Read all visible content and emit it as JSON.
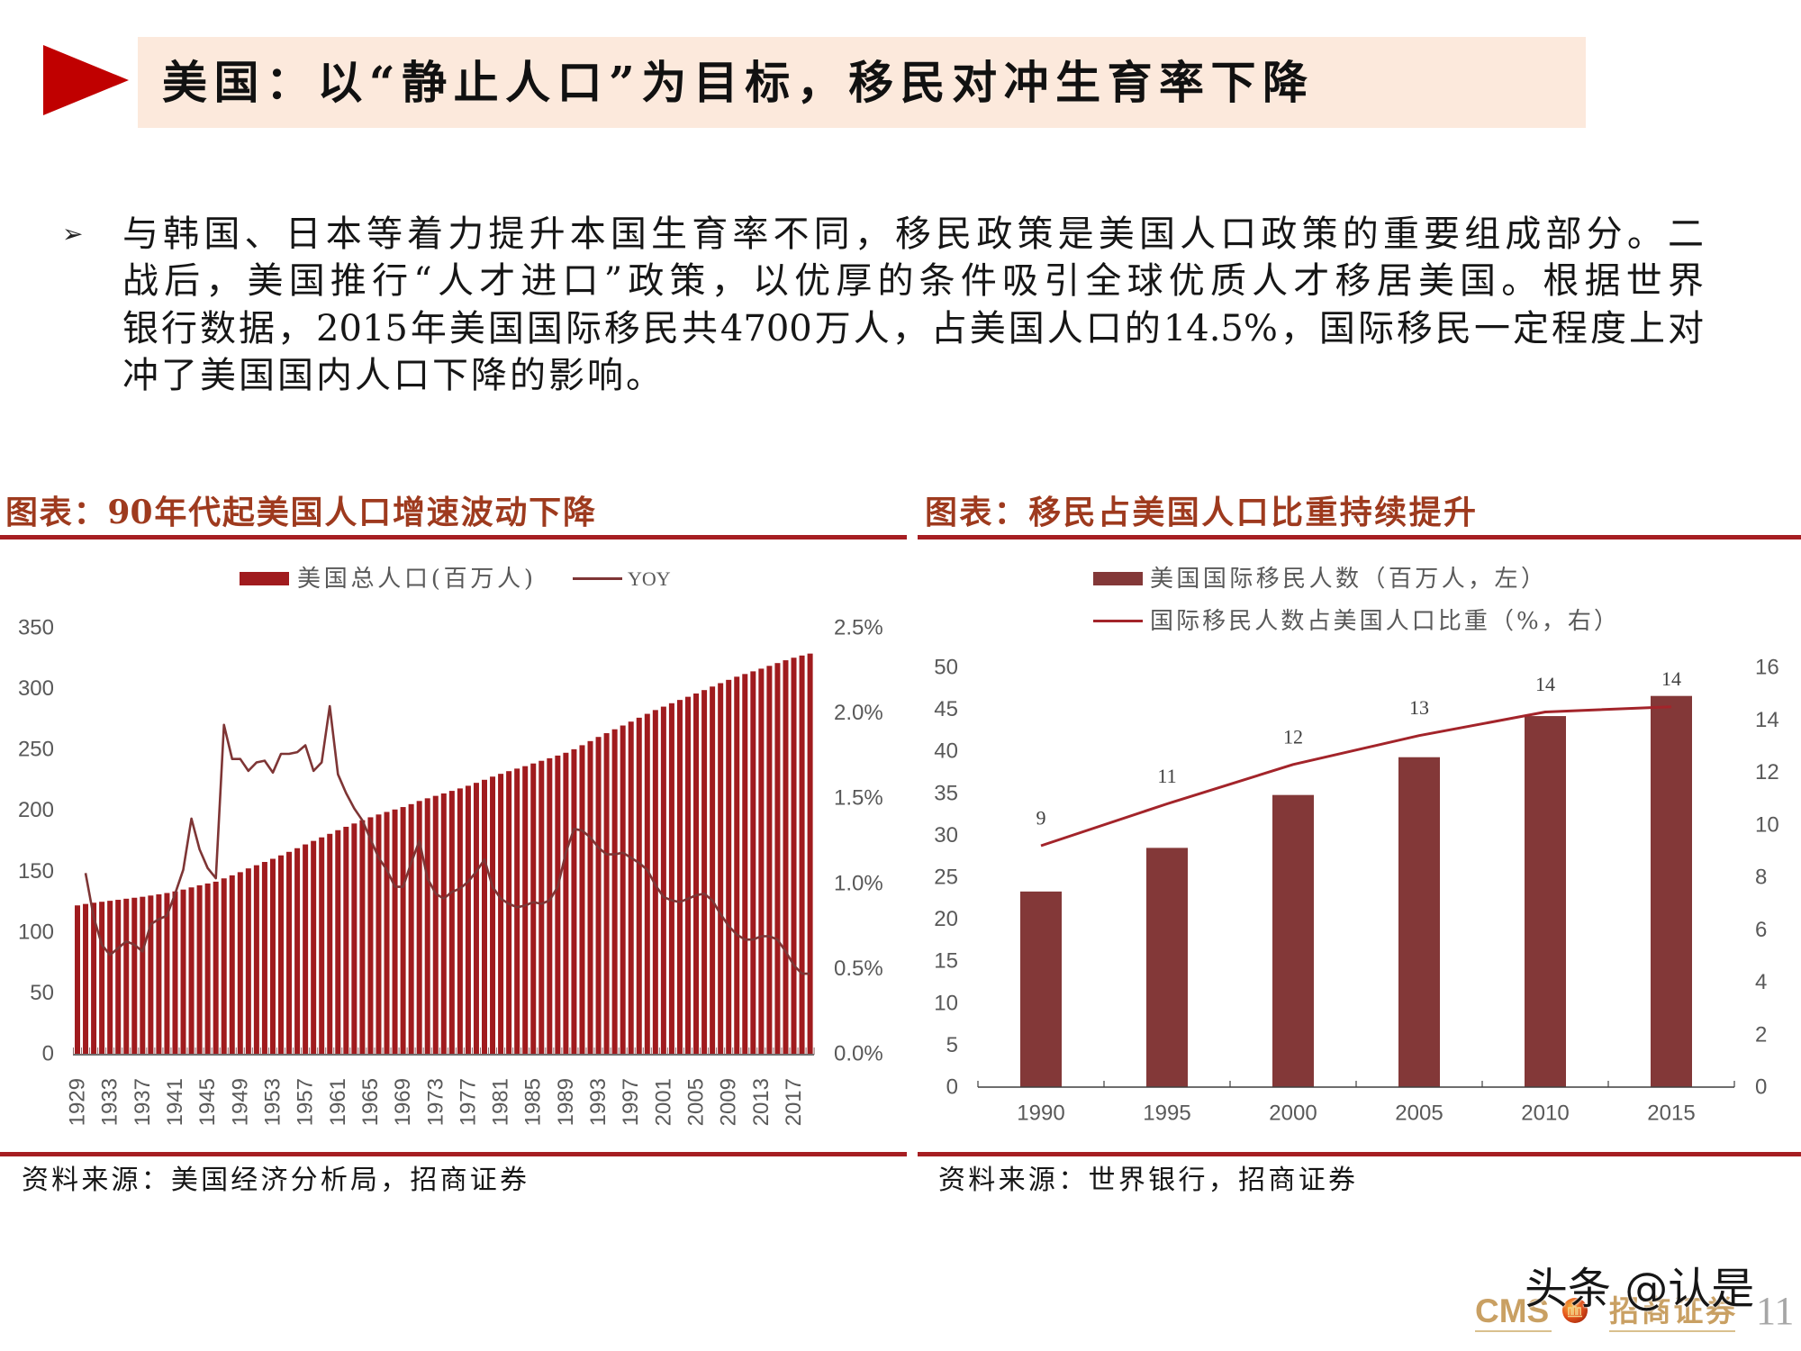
{
  "theme": {
    "accent_red": "#C00000",
    "title_banner_bg": "#FCE9DC",
    "chart_title_color": "#9E3A1E",
    "divider_red": "#A61E22",
    "axis_text": "#595959",
    "logo_gold": "#C9A063",
    "page_number_gray": "#A6A6A6"
  },
  "slide": {
    "title": "美国：以“静止人口”为目标，移民对冲生育率下降",
    "title_icon": "red-triangle-arrow-icon",
    "page_number": "11",
    "watermark": "头条 @认是",
    "logo": {
      "en": "CMS",
      "cn": "招商证券",
      "icon": "cms-ball-logo-icon"
    }
  },
  "body": {
    "bullet_icon": "arrow-bullet-icon",
    "bullet_glyph": "➢",
    "lines": [
      "与韩国、日本等着力提升本国生育率不同，移民政策是美国人口政策的重要组成部分。二",
      "战后，美国推行“人才进口”政策，以优厚的条件吸引全球优质人才移居美国。根据世界",
      "银行数据，2015年美国国际移民共4700万人，占美国人口的14.5%，国际移民一定程度上对",
      "冲了美国国内人口下降的影响。"
    ]
  },
  "panels": {
    "left": {
      "source": "资料来源：美国经济分析局，招商证券"
    },
    "right": {
      "source": "资料来源：世界银行，招商证券"
    }
  },
  "chart_data": [
    {
      "type": "bar",
      "title": "图表：90年代起美国人口增速波动下降",
      "xlabel": "",
      "ylabel": "",
      "grid": false,
      "legend_position": "top",
      "categories": [
        "1929",
        "1930",
        "1931",
        "1932",
        "1933",
        "1934",
        "1935",
        "1936",
        "1937",
        "1938",
        "1939",
        "1940",
        "1941",
        "1942",
        "1943",
        "1944",
        "1945",
        "1946",
        "1947",
        "1948",
        "1949",
        "1950",
        "1951",
        "1952",
        "1953",
        "1954",
        "1955",
        "1956",
        "1957",
        "1958",
        "1959",
        "1960",
        "1961",
        "1962",
        "1963",
        "1964",
        "1965",
        "1966",
        "1967",
        "1968",
        "1969",
        "1970",
        "1971",
        "1972",
        "1973",
        "1974",
        "1975",
        "1976",
        "1977",
        "1978",
        "1979",
        "1980",
        "1981",
        "1982",
        "1983",
        "1984",
        "1985",
        "1986",
        "1987",
        "1988",
        "1989",
        "1990",
        "1991",
        "1992",
        "1993",
        "1994",
        "1995",
        "1996",
        "1997",
        "1998",
        "1999",
        "2000",
        "2001",
        "2002",
        "2003",
        "2004",
        "2005",
        "2006",
        "2007",
        "2008",
        "2009",
        "2010",
        "2011",
        "2012",
        "2013",
        "2014",
        "2015",
        "2016",
        "2017",
        "2018",
        "2019"
      ],
      "x_tick_labels": [
        "1929",
        "1933",
        "1937",
        "1941",
        "1945",
        "1949",
        "1953",
        "1957",
        "1961",
        "1965",
        "1969",
        "1973",
        "1977",
        "1981",
        "1985",
        "1989",
        "1993",
        "1997",
        "2001",
        "2005",
        "2009",
        "2013",
        "2017"
      ],
      "series": [
        {
          "name": "美国总人口(百万人)",
          "type": "bar",
          "axis": "left",
          "color": "#A01B1E",
          "values": [
            121.9,
            123.1,
            124.1,
            124.9,
            125.7,
            126.5,
            127.4,
            128.2,
            129.0,
            130.0,
            131.0,
            132.1,
            133.4,
            134.9,
            136.7,
            138.4,
            139.9,
            141.4,
            144.1,
            146.6,
            149.2,
            152.3,
            154.9,
            157.6,
            160.2,
            163.0,
            165.9,
            168.9,
            172.0,
            174.9,
            177.8,
            180.7,
            183.7,
            186.5,
            189.2,
            191.9,
            194.3,
            196.6,
            198.7,
            200.7,
            202.7,
            205.1,
            207.7,
            209.9,
            211.9,
            213.9,
            216.0,
            218.0,
            220.2,
            222.6,
            225.1,
            227.7,
            230.0,
            232.2,
            234.3,
            236.3,
            238.5,
            240.7,
            242.8,
            245.0,
            247.3,
            250.2,
            253.5,
            256.9,
            260.3,
            263.4,
            266.6,
            269.7,
            272.9,
            276.1,
            279.3,
            282.4,
            285.2,
            288.0,
            290.7,
            293.3,
            296.0,
            298.8,
            301.7,
            304.5,
            307.2,
            309.8,
            312.0,
            314.2,
            316.4,
            318.7,
            321.0,
            323.3,
            325.4,
            327.2,
            328.8
          ]
        },
        {
          "name": "YOY",
          "type": "line",
          "axis": "right",
          "unit": "%",
          "color": "#7E3535",
          "values": [
            null,
            1.06,
            0.8,
            0.64,
            0.58,
            0.62,
            0.66,
            0.64,
            0.6,
            0.76,
            0.79,
            0.81,
            0.94,
            1.08,
            1.38,
            1.2,
            1.09,
            1.03,
            1.93,
            1.73,
            1.73,
            1.66,
            1.71,
            1.72,
            1.65,
            1.76,
            1.76,
            1.77,
            1.81,
            1.66,
            1.71,
            2.04,
            1.64,
            1.53,
            1.44,
            1.37,
            1.26,
            1.15,
            1.08,
            0.98,
            0.98,
            1.12,
            1.25,
            1.03,
            0.94,
            0.91,
            0.95,
            0.97,
            1.01,
            1.07,
            1.14,
            0.98,
            0.91,
            0.88,
            0.86,
            0.87,
            0.89,
            0.88,
            0.9,
            0.98,
            1.18,
            1.32,
            1.31,
            1.27,
            1.21,
            1.17,
            1.17,
            1.18,
            1.15,
            1.12,
            1.08,
            0.99,
            0.92,
            0.9,
            0.89,
            0.91,
            0.93,
            0.94,
            0.9,
            0.82,
            0.75,
            0.7,
            0.67,
            0.67,
            0.69,
            0.69,
            0.67,
            0.6,
            0.52,
            0.47,
            0.47
          ]
        }
      ],
      "y_left": {
        "range": [
          0,
          350
        ],
        "ticks": [
          "0",
          "50",
          "100",
          "150",
          "200",
          "250",
          "300",
          "350"
        ]
      },
      "y_right": {
        "range": [
          0,
          2.5
        ],
        "ticks": [
          "0.0%",
          "0.5%",
          "1.0%",
          "1.5%",
          "2.0%",
          "2.5%"
        ]
      }
    },
    {
      "type": "bar",
      "title": "图表：移民占美国人口比重持续提升",
      "xlabel": "",
      "ylabel": "",
      "grid": false,
      "legend_position": "top",
      "categories": [
        "1990",
        "1995",
        "2000",
        "2005",
        "2010",
        "2015"
      ],
      "series": [
        {
          "name": "美国国际移民人数（百万人，左）",
          "type": "bar",
          "axis": "left",
          "color": "#833838",
          "values": [
            23.3,
            28.5,
            34.8,
            39.3,
            44.2,
            46.6
          ]
        },
        {
          "name": "国际移民人数占美国人口比重（%，右）",
          "type": "line",
          "axis": "right",
          "color": "#A3242A",
          "values": [
            9.2,
            10.8,
            12.3,
            13.4,
            14.3,
            14.5
          ],
          "data_labels": [
            "9",
            "11",
            "12",
            "13",
            "14",
            "14"
          ]
        }
      ],
      "y_left": {
        "range": [
          0,
          50
        ],
        "ticks": [
          "0",
          "5",
          "10",
          "15",
          "20",
          "25",
          "30",
          "35",
          "40",
          "45",
          "50"
        ]
      },
      "y_right": {
        "range": [
          0,
          16
        ],
        "ticks": [
          "0",
          "2",
          "4",
          "6",
          "8",
          "10",
          "12",
          "14",
          "16"
        ]
      }
    }
  ]
}
